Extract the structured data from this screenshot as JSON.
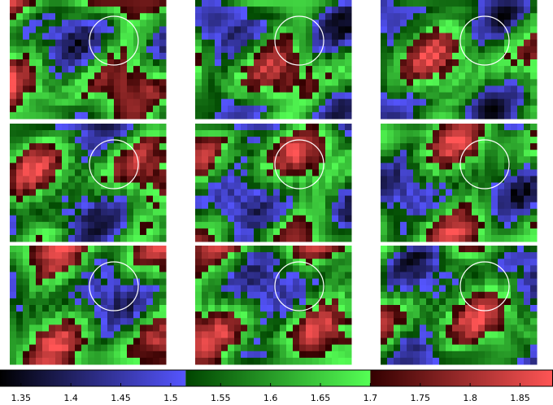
{
  "chart_data": {
    "type": "colorbar",
    "xlim": [
      1.329,
      1.883
    ],
    "xticks": [
      1.35,
      1.4,
      1.45,
      1.5,
      1.55,
      1.6,
      1.65,
      1.7,
      1.75,
      1.8,
      1.85
    ],
    "segments": [
      {
        "from": 1.329,
        "to": 1.515,
        "colors": [
          "#000000",
          "#5555ff"
        ]
      },
      {
        "from": 1.515,
        "to": 1.7,
        "colors": [
          "#004400",
          "#55ff55"
        ]
      },
      {
        "from": 1.7,
        "to": 1.883,
        "colors": [
          "#330000",
          "#ff5555"
        ]
      }
    ]
  }
}
